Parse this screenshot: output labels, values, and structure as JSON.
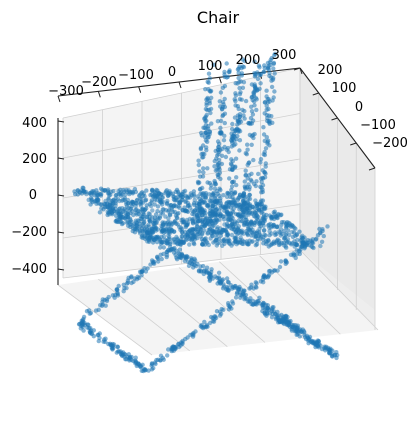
{
  "chart_data": {
    "type": "scatter",
    "projection": "3d",
    "title": "Chair",
    "xlabel": "",
    "ylabel": "",
    "zlabel": "",
    "series_color": "#1f77b4",
    "xlim": [
      -300,
      300
    ],
    "ylim": [
      -250,
      250
    ],
    "zlim": [
      -450,
      450
    ],
    "x_ticks": [
      "−300",
      "−200",
      "−100",
      "0",
      "100",
      "200",
      "300"
    ],
    "y_ticks": [
      "200",
      "100",
      "0",
      "−100",
      "−200"
    ],
    "z_ticks": [
      "400",
      "200",
      "0",
      "−200",
      "−400"
    ],
    "grid": true,
    "point_cloud": {
      "backrest": {
        "x": [
          60,
          280
        ],
        "y": [
          -240,
          -200
        ],
        "z": [
          -200,
          420
        ]
      },
      "seat": {
        "x": [
          -280,
          250
        ],
        "y": [
          -240,
          220
        ],
        "z": [
          -80,
          20
        ]
      },
      "legs": {
        "x": [
          -300,
          300
        ],
        "y": [
          -240,
          240
        ],
        "z": [
          -450,
          0
        ]
      }
    }
  }
}
